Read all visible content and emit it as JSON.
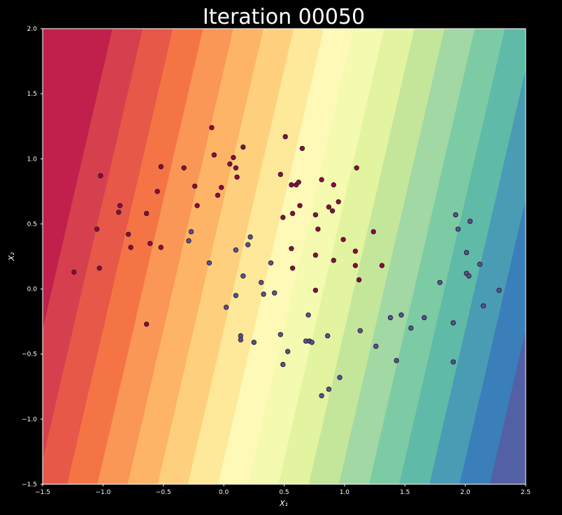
{
  "chart_data": {
    "type": "scatter",
    "title": "Iteration 00050",
    "xlabel": "X₁",
    "ylabel": "X₂",
    "xlim": [
      -1.5,
      2.5
    ],
    "ylim": [
      -1.5,
      2.0
    ],
    "xticks": [
      "−1.5",
      "−1.0",
      "−0.5",
      "0.0",
      "0.5",
      "1.0",
      "1.5",
      "2.0",
      "2.5"
    ],
    "xtick_values": [
      -1.5,
      -1.0,
      -0.5,
      0.0,
      0.5,
      1.0,
      1.5,
      2.0,
      2.5
    ],
    "yticks": [
      "2.0",
      "1.5",
      "1.0",
      "0.5",
      "0.0",
      "−0.5",
      "−1.0",
      "−1.5"
    ],
    "ytick_values": [
      2.0,
      1.5,
      1.0,
      0.5,
      0.0,
      -0.5,
      -1.0,
      -1.5
    ],
    "grid": false,
    "background": {
      "type": "filled-contour",
      "colormap": "Spectral",
      "colors": [
        "#c0204b",
        "#d6404e",
        "#e75848",
        "#f57446",
        "#fa9656",
        "#fdb466",
        "#fed07e",
        "#fee899",
        "#fef9b6",
        "#f4faaf",
        "#e3f4a0",
        "#c4e69b",
        "#a1d8a4",
        "#7ccba5",
        "#5fbaa8",
        "#4a9bb4",
        "#3a7fb9",
        "#5360a6"
      ],
      "boundary_slope_dx_per_dy": 0.25,
      "first_boundary_at_y0": -1.42,
      "boundary_spacing_x": 0.25
    },
    "series": [
      {
        "color": "#9e0142",
        "points": [
          [
            -1.24,
            0.13
          ],
          [
            -1.02,
            0.87
          ],
          [
            -1.05,
            0.46
          ],
          [
            -1.03,
            0.16
          ],
          [
            -0.87,
            0.59
          ],
          [
            -0.86,
            0.64
          ],
          [
            -0.79,
            0.42
          ],
          [
            -0.77,
            0.32
          ],
          [
            -0.64,
            0.58
          ],
          [
            -0.61,
            0.35
          ],
          [
            -0.55,
            0.75
          ],
          [
            -0.52,
            0.94
          ],
          [
            -0.52,
            0.32
          ],
          [
            -0.64,
            -0.27
          ],
          [
            -0.33,
            0.93
          ],
          [
            -0.24,
            0.79
          ],
          [
            -0.22,
            0.64
          ],
          [
            -0.1,
            1.24
          ],
          [
            -0.08,
            1.03
          ],
          [
            -0.05,
            0.72
          ],
          [
            -0.02,
            0.78
          ],
          [
            0.05,
            0.96
          ],
          [
            0.08,
            1.01
          ],
          [
            0.1,
            0.93
          ],
          [
            0.11,
            0.86
          ],
          [
            0.16,
            1.09
          ],
          [
            0.47,
            0.88
          ],
          [
            0.51,
            1.17
          ],
          [
            0.49,
            0.55
          ],
          [
            0.56,
            0.8
          ],
          [
            0.57,
            0.58
          ],
          [
            0.6,
            0.8
          ],
          [
            0.62,
            0.82
          ],
          [
            0.63,
            0.64
          ],
          [
            0.65,
            1.08
          ],
          [
            0.56,
            0.31
          ],
          [
            0.57,
            0.16
          ],
          [
            0.76,
            0.57
          ],
          [
            0.78,
            0.46
          ],
          [
            0.81,
            0.84
          ],
          [
            0.87,
            0.63
          ],
          [
            0.9,
            0.6
          ],
          [
            0.91,
            0.8
          ],
          [
            0.95,
            0.67
          ],
          [
            0.99,
            0.38
          ],
          [
            0.76,
            0.26
          ],
          [
            0.91,
            0.22
          ],
          [
            1.09,
            0.29
          ],
          [
            1.09,
            0.18
          ],
          [
            1.1,
            0.93
          ],
          [
            1.12,
            0.07
          ],
          [
            1.24,
            0.44
          ],
          [
            1.31,
            0.18
          ],
          [
            0.76,
            -0.01
          ]
        ]
      },
      {
        "color": "#5e4fa2",
        "points": [
          [
            -0.29,
            0.37
          ],
          [
            -0.27,
            0.44
          ],
          [
            -0.12,
            0.2
          ],
          [
            0.02,
            -0.14
          ],
          [
            0.1,
            0.3
          ],
          [
            0.1,
            -0.05
          ],
          [
            0.14,
            -0.36
          ],
          [
            0.14,
            -0.39
          ],
          [
            0.16,
            0.1
          ],
          [
            0.2,
            0.34
          ],
          [
            0.22,
            0.4
          ],
          [
            0.25,
            -0.41
          ],
          [
            0.31,
            0.05
          ],
          [
            0.33,
            -0.04
          ],
          [
            0.39,
            0.2
          ],
          [
            0.42,
            -0.03
          ],
          [
            0.47,
            -0.35
          ],
          [
            0.49,
            -0.58
          ],
          [
            0.53,
            -0.48
          ],
          [
            0.68,
            -0.4
          ],
          [
            0.7,
            -0.2
          ],
          [
            0.71,
            -0.4
          ],
          [
            0.73,
            -0.41
          ],
          [
            0.81,
            -0.82
          ],
          [
            0.86,
            -0.36
          ],
          [
            0.87,
            -0.77
          ],
          [
            0.96,
            -0.68
          ],
          [
            1.13,
            -0.32
          ],
          [
            1.26,
            -0.44
          ],
          [
            1.38,
            -0.22
          ],
          [
            1.43,
            -0.55
          ],
          [
            1.47,
            -0.2
          ],
          [
            1.55,
            -0.3
          ],
          [
            1.66,
            -0.22
          ],
          [
            1.79,
            0.05
          ],
          [
            1.9,
            -0.26
          ],
          [
            1.9,
            -0.56
          ],
          [
            1.92,
            0.57
          ],
          [
            1.94,
            0.46
          ],
          [
            2.01,
            0.28
          ],
          [
            2.01,
            0.12
          ],
          [
            2.03,
            0.1
          ],
          [
            2.04,
            0.52
          ],
          [
            2.12,
            0.19
          ],
          [
            2.15,
            -0.13
          ],
          [
            2.28,
            -0.01
          ]
        ]
      }
    ]
  }
}
